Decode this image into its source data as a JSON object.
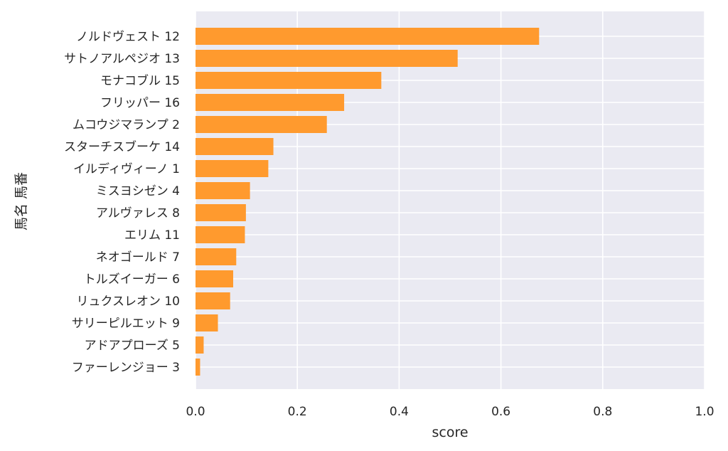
{
  "chart_data": {
    "type": "bar",
    "orientation": "horizontal",
    "title": "",
    "xlabel": "score",
    "ylabel": "馬名 馬番",
    "xlim": [
      0.0,
      1.0
    ],
    "xticks": [
      "0.0",
      "0.2",
      "0.4",
      "0.6",
      "0.8",
      "1.0"
    ],
    "grid": true,
    "colors": {
      "bar": "#ff9a2e",
      "plot_background": "#eaeaf2",
      "grid": "#ffffff"
    },
    "categories": [
      "ノルドヴェスト 12",
      "サトノアルペジオ 13",
      "モナコブル 15",
      "フリッパー 16",
      "ムコウジマランプ 2",
      "スターチスブーケ 14",
      "イルディヴィーノ 1",
      "ミスヨシゼン 4",
      "アルヴァレス 8",
      "エリム 11",
      "ネオゴールド 7",
      "トルズイーガー 6",
      "リュクスレオン 10",
      "サリーピルエット 9",
      "アドアプローズ 5",
      "ファーレンジョー 3"
    ],
    "values": [
      0.675,
      0.515,
      0.365,
      0.292,
      0.258,
      0.153,
      0.143,
      0.107,
      0.099,
      0.097,
      0.08,
      0.074,
      0.068,
      0.044,
      0.016,
      0.009
    ]
  }
}
